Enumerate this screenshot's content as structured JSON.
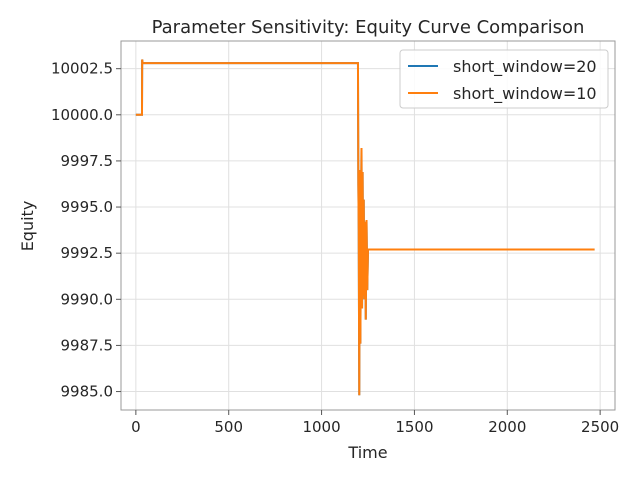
{
  "chart_data": {
    "type": "line",
    "title": "Parameter Sensitivity: Equity Curve Comparison",
    "xlabel": "Time",
    "ylabel": "Equity",
    "xlim": [
      -80,
      2580
    ],
    "ylim": [
      9984.0,
      10004.0
    ],
    "x_ticks": [
      0,
      500,
      1000,
      1500,
      2000,
      2500
    ],
    "x_tick_labels": [
      "0",
      "500",
      "1000",
      "1500",
      "2000",
      "2500"
    ],
    "y_ticks": [
      9985.0,
      9987.5,
      9990.0,
      9992.5,
      9995.0,
      9997.5,
      10000.0,
      10002.5
    ],
    "y_tick_labels": [
      "9985.0",
      "9987.5",
      "9990.0",
      "9992.5",
      "9995.0",
      "9997.5",
      "10000.0",
      "10002.5"
    ],
    "grid": true,
    "legend_position": "top-right",
    "series": [
      {
        "name": "short_window=20",
        "color": "#1f77b4",
        "points": [
          [
            0,
            10000.0
          ],
          [
            33,
            10000.0
          ],
          [
            34,
            10003.0
          ],
          [
            36,
            10002.8
          ],
          [
            1196,
            10002.8
          ],
          [
            1198,
            9996.2
          ],
          [
            1200,
            9993.8
          ],
          [
            1203,
            9984.8
          ],
          [
            1206,
            9997.0
          ],
          [
            1209,
            9987.6
          ],
          [
            1212,
            9994.0
          ],
          [
            1215,
            9998.2
          ],
          [
            1218,
            9989.5
          ],
          [
            1221,
            9996.9
          ],
          [
            1224,
            9990.2
          ],
          [
            1227,
            9995.4
          ],
          [
            1230,
            9990.0
          ],
          [
            1234,
            9994.2
          ],
          [
            1238,
            9988.9
          ],
          [
            1242,
            9994.3
          ],
          [
            1246,
            9990.5
          ],
          [
            1250,
            9992.7
          ],
          [
            2470,
            9992.7
          ]
        ]
      },
      {
        "name": "short_window=10",
        "color": "#ff7f0e",
        "points": [
          [
            0,
            10000.0
          ],
          [
            33,
            10000.0
          ],
          [
            34,
            10003.0
          ],
          [
            36,
            10002.8
          ],
          [
            1196,
            10002.8
          ],
          [
            1198,
            9996.2
          ],
          [
            1200,
            9993.8
          ],
          [
            1203,
            9984.8
          ],
          [
            1206,
            9997.0
          ],
          [
            1209,
            9987.6
          ],
          [
            1212,
            9994.0
          ],
          [
            1215,
            9998.2
          ],
          [
            1218,
            9989.5
          ],
          [
            1221,
            9996.9
          ],
          [
            1224,
            9990.2
          ],
          [
            1227,
            9995.4
          ],
          [
            1230,
            9990.0
          ],
          [
            1234,
            9994.2
          ],
          [
            1238,
            9988.9
          ],
          [
            1242,
            9994.3
          ],
          [
            1246,
            9990.5
          ],
          [
            1250,
            9992.7
          ],
          [
            2470,
            9992.7
          ]
        ]
      }
    ]
  }
}
